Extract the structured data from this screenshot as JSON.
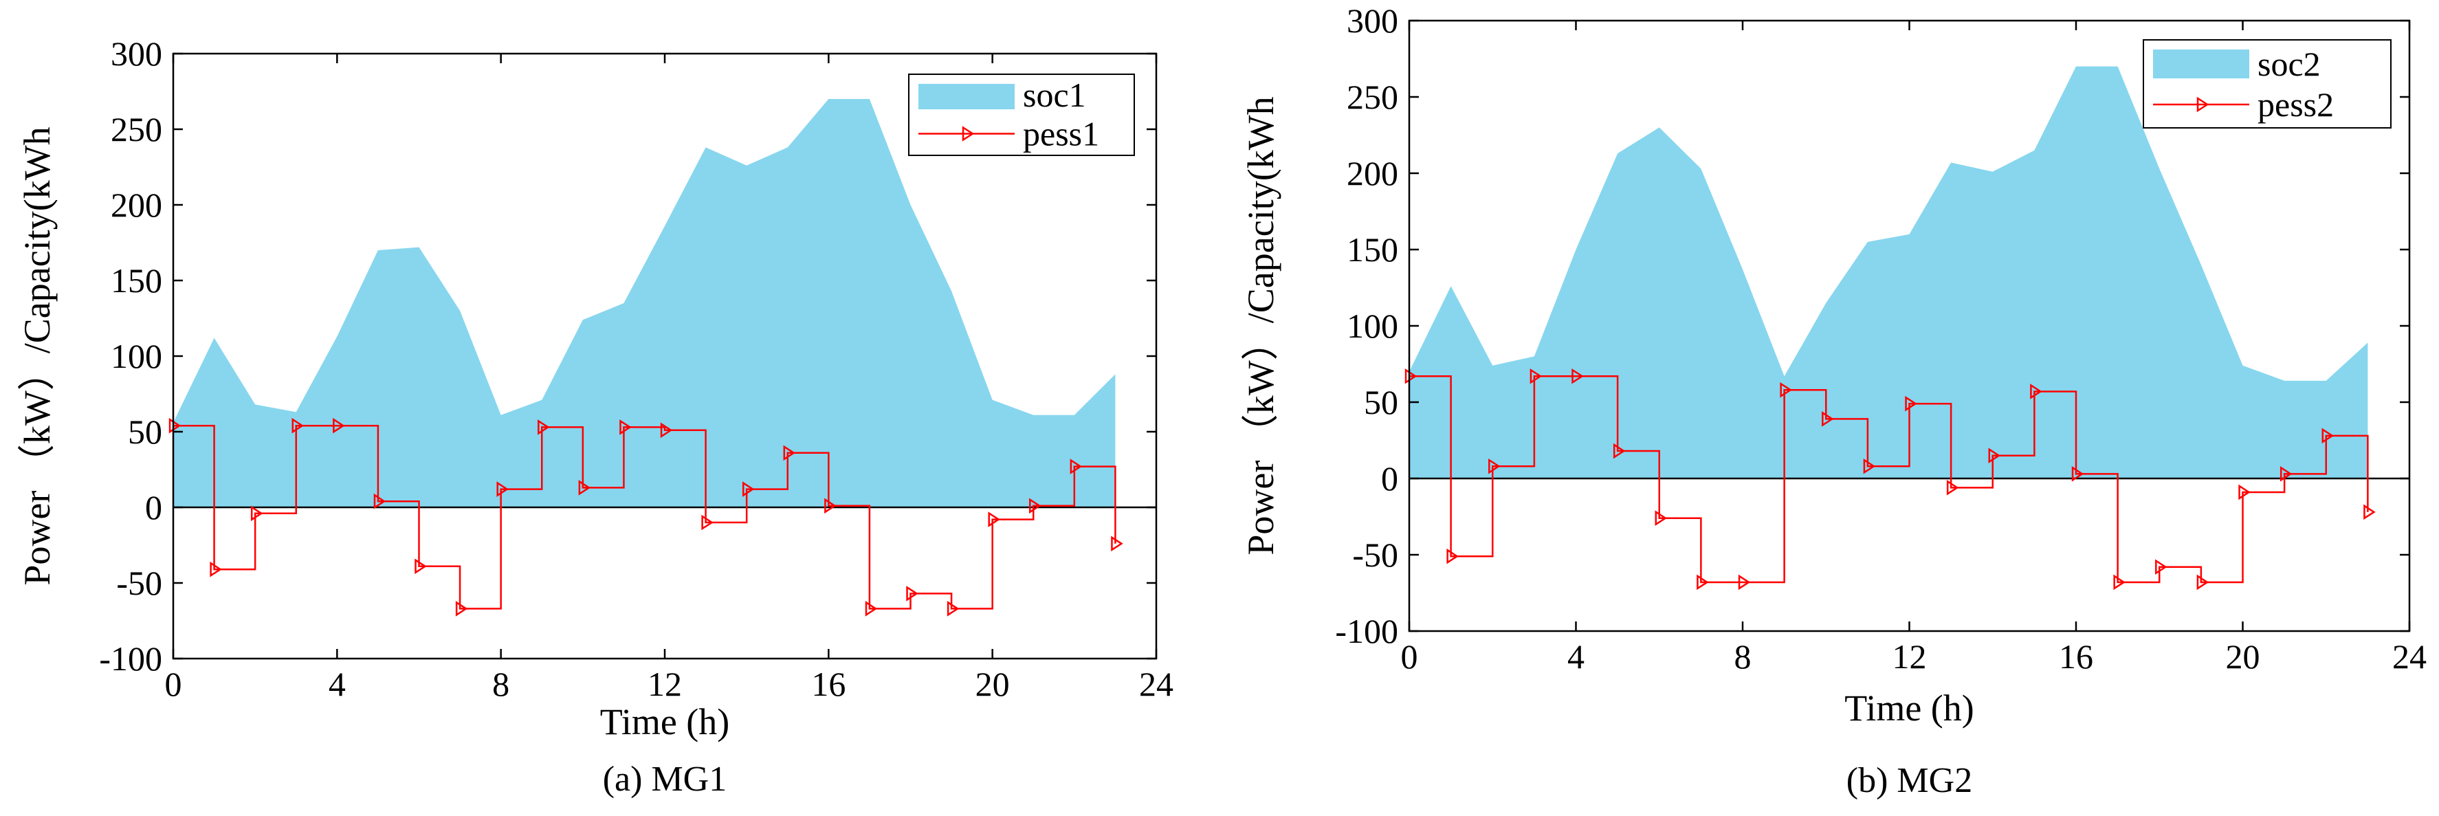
{
  "chart_data": [
    {
      "type": "area+step",
      "caption": "(a) MG1",
      "xlabel": "Time  (h)",
      "ylabel": "Power （kW）/Capacity(kWh",
      "xlim": [
        0,
        24
      ],
      "ylim": [
        -100,
        300
      ],
      "xticks": [
        0,
        4,
        8,
        12,
        16,
        20,
        24
      ],
      "yticks": [
        -100,
        -50,
        0,
        50,
        100,
        150,
        200,
        250,
        300
      ],
      "legend": {
        "position": "top-right",
        "labels": [
          "soc1",
          "pess1"
        ]
      },
      "series": [
        {
          "name": "soc1",
          "kind": "area",
          "color": "#87d6ee",
          "x": [
            0,
            1,
            2,
            3,
            4,
            5,
            6,
            7,
            8,
            9,
            10,
            11,
            12,
            13,
            14,
            15,
            16,
            17,
            18,
            19,
            20,
            21,
            22,
            23
          ],
          "values": [
            56,
            112,
            68,
            63,
            113,
            170,
            172,
            130,
            61,
            71,
            124,
            135,
            186,
            238,
            226,
            238,
            270,
            270,
            200,
            143,
            71,
            61,
            61,
            88
          ]
        },
        {
          "name": "pess1",
          "kind": "step",
          "color": "#ff0000",
          "x": [
            0,
            1,
            2,
            3,
            4,
            5,
            6,
            7,
            8,
            9,
            10,
            11,
            12,
            13,
            14,
            15,
            16,
            17,
            18,
            19,
            20,
            21,
            22,
            23
          ],
          "values": [
            54,
            -41,
            -4,
            54,
            54,
            4,
            -39,
            -67,
            12,
            53,
            13,
            53,
            51,
            -10,
            12,
            36,
            1,
            -67,
            -57,
            -67,
            -8,
            1,
            27,
            -24
          ]
        }
      ]
    },
    {
      "type": "area+step",
      "caption": "(b) MG2",
      "xlabel": "Time  (h)",
      "ylabel": "Power （kW）/Capacity(kWh",
      "xlim": [
        0,
        24
      ],
      "ylim": [
        -100,
        300
      ],
      "xticks": [
        0,
        4,
        8,
        12,
        16,
        20,
        24
      ],
      "yticks": [
        -100,
        -50,
        0,
        50,
        100,
        150,
        200,
        250,
        300
      ],
      "legend": {
        "position": "top-right",
        "labels": [
          "soc2",
          "pess2"
        ]
      },
      "series": [
        {
          "name": "soc2",
          "kind": "area",
          "color": "#87d6ee",
          "x": [
            0,
            1,
            2,
            3,
            4,
            5,
            6,
            7,
            8,
            9,
            10,
            11,
            12,
            13,
            14,
            15,
            16,
            17,
            18,
            19,
            20,
            21,
            22,
            23
          ],
          "values": [
            70,
            126,
            74,
            80,
            150,
            213,
            230,
            203,
            137,
            67,
            115,
            155,
            160,
            207,
            201,
            215,
            270,
            270,
            203,
            140,
            74,
            64,
            64,
            89
          ]
        },
        {
          "name": "pess2",
          "kind": "step",
          "color": "#ff0000",
          "x": [
            0,
            1,
            2,
            3,
            4,
            5,
            6,
            7,
            8,
            9,
            10,
            11,
            12,
            13,
            14,
            15,
            16,
            17,
            18,
            19,
            20,
            21,
            22,
            23
          ],
          "values": [
            67,
            -51,
            8,
            67,
            67,
            18,
            -26,
            -68,
            -68,
            58,
            39,
            8,
            49,
            -6,
            15,
            57,
            3,
            -68,
            -58,
            -68,
            -9,
            3,
            28,
            -22
          ]
        }
      ]
    }
  ]
}
